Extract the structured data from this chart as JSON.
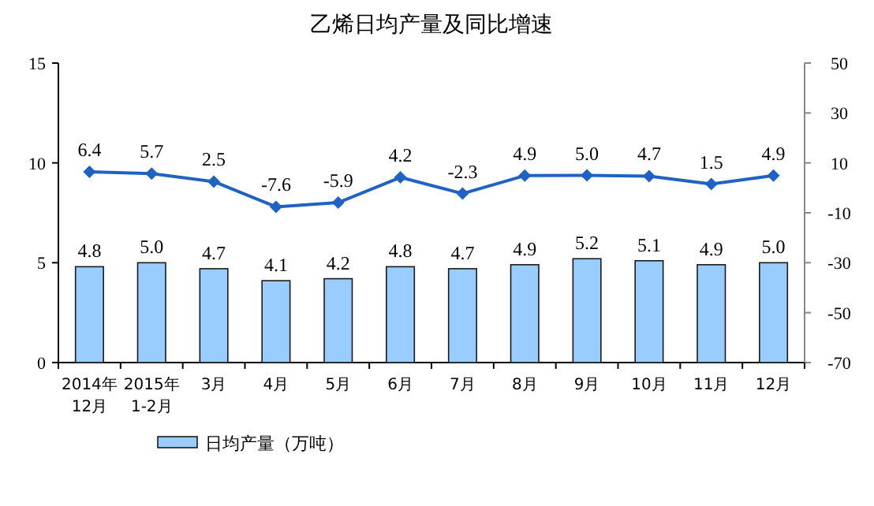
{
  "chart_data": {
    "type": "bar",
    "title": "乙烯日均产量及同比增速",
    "categories": [
      "2014年\n12月",
      "2015年\n1-2月",
      "3月",
      "4月",
      "5月",
      "6月",
      "7月",
      "8月",
      "9月",
      "10月",
      "11月",
      "12月"
    ],
    "series": [
      {
        "name": "日均产量（万吨）",
        "color": "#99ccff",
        "values": [
          4.8,
          5.0,
          4.7,
          4.1,
          4.2,
          4.8,
          4.7,
          4.9,
          5.2,
          5.1,
          4.9,
          5.0
        ],
        "value_labels": [
          "4.8",
          "5.0",
          "4.7",
          "4.1",
          "4.2",
          "4.8",
          "4.7",
          "4.9",
          "5.2",
          "5.1",
          "4.9",
          "5.0"
        ]
      },
      {
        "type": "line",
        "axis": "y2",
        "color": "#1f62c4",
        "marker": "diamond",
        "values": [
          6.4,
          5.7,
          2.5,
          -7.6,
          -5.9,
          4.2,
          -2.3,
          4.9,
          5.0,
          4.7,
          1.5,
          4.9
        ],
        "value_labels": [
          "6.4",
          "5.7",
          "2.5",
          "-7.6",
          "-5.9",
          "4.2",
          "-2.3",
          "4.9",
          "5.0",
          "4.7",
          "1.5",
          "4.9"
        ]
      }
    ],
    "ylim": [
      0,
      15
    ],
    "yticks": [
      0,
      5,
      10,
      15
    ],
    "y2lim": [
      -70,
      50
    ],
    "y2ticks": [
      -70,
      -50,
      -30,
      -10,
      10,
      30,
      50
    ],
    "legend": "bottom",
    "grid": false
  }
}
